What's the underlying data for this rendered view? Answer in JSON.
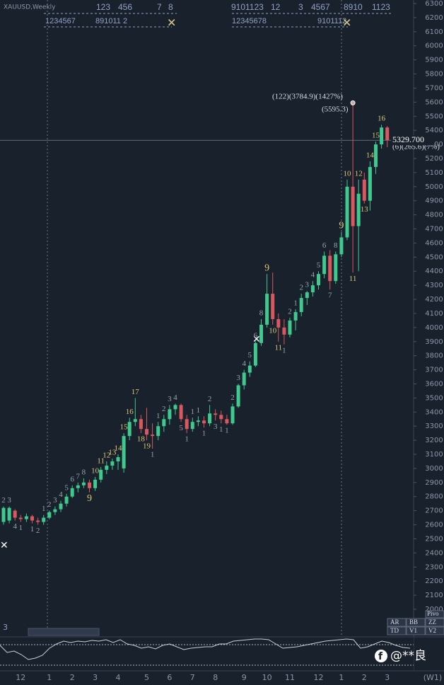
{
  "symbol": "XAUUSD,Weekly",
  "top_counts_row1": [
    "123",
    "456",
    "7",
    "8",
    "9101123",
    "12",
    "3",
    "4567",
    "8910",
    "1123"
  ],
  "top_counts_row2": [
    "1234567",
    "891011 2",
    "12345678",
    "9101112"
  ],
  "chart_data": {
    "type": "candlestick",
    "categories": [
      null,
      null,
      null,
      "12",
      null,
      null,
      null,
      null,
      "1",
      null,
      null,
      null,
      "2",
      null,
      null,
      null,
      "3",
      null,
      null,
      null,
      "4",
      null,
      null,
      null,
      null,
      "5",
      null,
      null,
      null,
      "6",
      null,
      null,
      null,
      "7",
      null,
      null,
      null,
      "8",
      null,
      null,
      null,
      null,
      "9",
      null,
      null,
      null,
      "10",
      null,
      null,
      null,
      "11",
      null,
      null,
      null,
      null,
      "12",
      null,
      null,
      null,
      "1",
      null,
      null,
      null,
      "2",
      null,
      null,
      null,
      "3"
    ],
    "period_label": "(W1)",
    "open": [
      2620,
      2630,
      2700,
      2650,
      2640,
      2660,
      2630,
      2620,
      2650,
      2690,
      2710,
      2750,
      2800,
      2860,
      2880,
      2900,
      2860,
      2920,
      2990,
      3020,
      3050,
      3000,
      3230,
      3330,
      3350,
      3280,
      3240,
      3230,
      3300,
      3350,
      3420,
      3450,
      3350,
      3280,
      3330,
      3340,
      3320,
      3390,
      3380,
      3350,
      3320,
      3440,
      3590,
      3680,
      3730,
      3890,
      4020,
      4240,
      4060,
      4000,
      3950,
      4050,
      4110,
      4210,
      4250,
      4300,
      4380,
      4510,
      4330,
      4520,
      4640,
      5000,
      4720,
      5050,
      4900,
      5140,
      5300,
      5420
    ],
    "high": [
      2730,
      2730,
      2710,
      2670,
      2680,
      2670,
      2650,
      2670,
      2700,
      2730,
      2770,
      2820,
      2880,
      2900,
      2930,
      2920,
      2940,
      3010,
      3050,
      3070,
      3100,
      3250,
      3360,
      3500,
      3380,
      3430,
      3320,
      3330,
      3380,
      3450,
      3460,
      3460,
      3380,
      3360,
      3370,
      3370,
      3450,
      3420,
      3410,
      3380,
      3460,
      3600,
      3700,
      3760,
      3900,
      4060,
      4380,
      4390,
      4100,
      4060,
      4070,
      4130,
      4240,
      4260,
      4330,
      4400,
      4540,
      4550,
      4540,
      4680,
      5050,
      5595,
      5050,
      5100,
      5180,
      5320,
      5440,
      5430
    ],
    "low": [
      2600,
      2610,
      2630,
      2620,
      2620,
      2610,
      2600,
      2600,
      2640,
      2670,
      2690,
      2730,
      2790,
      2830,
      2860,
      2830,
      2840,
      2900,
      2960,
      2990,
      2990,
      2970,
      3200,
      3300,
      3250,
      3200,
      3140,
      3200,
      3260,
      3310,
      3380,
      3330,
      3250,
      3260,
      3300,
      3290,
      3300,
      3340,
      3320,
      3310,
      3310,
      3430,
      3560,
      3650,
      3720,
      3870,
      4000,
      4020,
      3900,
      3880,
      3930,
      3980,
      4080,
      4160,
      4220,
      4270,
      4350,
      4270,
      4310,
      4500,
      4620,
      4390,
      4400,
      4880,
      4830,
      5090,
      5270,
      5280
    ],
    "close": [
      2720,
      2720,
      2650,
      2640,
      2660,
      2630,
      2620,
      2650,
      2690,
      2710,
      2750,
      2800,
      2860,
      2880,
      2900,
      2860,
      2920,
      2990,
      3020,
      3050,
      3080,
      3230,
      3330,
      3350,
      3280,
      3240,
      3230,
      3300,
      3350,
      3420,
      3450,
      3350,
      3280,
      3330,
      3340,
      3320,
      3390,
      3380,
      3350,
      3320,
      3440,
      3590,
      3680,
      3730,
      3890,
      4020,
      4240,
      4060,
      4000,
      3950,
      4050,
      4110,
      4210,
      4250,
      4300,
      4380,
      4510,
      4330,
      4520,
      4640,
      5000,
      4720,
      4950,
      4900,
      5140,
      5300,
      5420,
      5330
    ],
    "counts": [
      "2",
      "3",
      "4",
      "1",
      null,
      "1",
      "2",
      "1",
      "2",
      "3",
      "4",
      "5",
      "6",
      "7",
      "8",
      "9",
      "10",
      "11",
      "12",
      "13",
      "14",
      "15",
      "16",
      "17",
      "18",
      "19",
      "1",
      "1",
      "2",
      "3",
      "4",
      "5",
      "1",
      "1",
      "1",
      "1",
      "2",
      "3",
      "1",
      "1",
      "2",
      "3",
      "4",
      "5",
      "6",
      "8",
      "9",
      "10",
      "11",
      "1",
      "2",
      "1",
      "2",
      "3",
      "4",
      "5",
      "6",
      "7",
      "8",
      "9",
      "10",
      "11",
      "12",
      "13",
      "14",
      "15",
      "16",
      null
    ],
    "up_color": "#3fc98e",
    "down_color": "#d9575f",
    "ylim": [
      1960,
      6320
    ],
    "yticks": [
      2000,
      2100,
      2200,
      2300,
      2400,
      2500,
      2600,
      2700,
      2800,
      2900,
      3000,
      3100,
      3200,
      3300,
      3400,
      3500,
      3600,
      3700,
      3800,
      3900,
      4000,
      4100,
      4200,
      4300,
      4400,
      4500,
      4600,
      4700,
      4800,
      4900,
      5000,
      5100,
      5200,
      5300,
      5400,
      5500,
      5600,
      5700,
      5800,
      5900,
      6000,
      6100,
      6200,
      6300
    ],
    "last_price": {
      "value": 5329.7,
      "label": "5329.700"
    },
    "annotations": [
      "(122)(3784.9)(1427%)",
      "(5595.3)",
      "(6)(265.6)(7%)"
    ]
  },
  "panel_label": "3",
  "buttons": [
    "Pivo",
    "AR",
    "BB",
    "ZZ",
    "TD",
    "V1",
    "V2"
  ],
  "watermark": "@**良"
}
